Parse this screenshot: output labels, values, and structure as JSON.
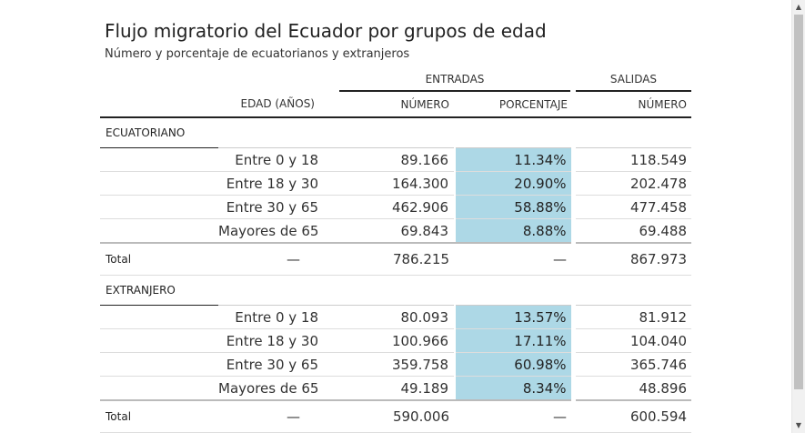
{
  "title": "Flujo migratorio del Ecuador por grupos de edad",
  "subtitle": "Número y porcentaje de ecuatorianos y extranjeros",
  "group_headers": {
    "entradas": "ENTRADAS",
    "salidas": "SALIDAS"
  },
  "columns": {
    "edad": "EDAD (AÑOS)",
    "numero": "NÚMERO",
    "porcentaje": "PORCENTAJE",
    "salidas_numero": "NÚMERO"
  },
  "accent_color": "#add8e6",
  "sections": [
    {
      "label": "ECUATORIANO",
      "rows": [
        {
          "age": "Entre 0 y 18",
          "entradas": "89.166",
          "porcentaje": "11.34%",
          "salidas": "118.549"
        },
        {
          "age": "Entre 18 y 30",
          "entradas": "164.300",
          "porcentaje": "20.90%",
          "salidas": "202.478"
        },
        {
          "age": "Entre 30 y 65",
          "entradas": "462.906",
          "porcentaje": "58.88%",
          "salidas": "477.458"
        },
        {
          "age": "Mayores de 65",
          "entradas": "69.843",
          "porcentaje": "8.88%",
          "salidas": "69.488"
        }
      ],
      "total": {
        "label": "Total",
        "age": "—",
        "entradas": "786.215",
        "porcentaje": "—",
        "salidas": "867.973"
      }
    },
    {
      "label": "EXTRANJERO",
      "rows": [
        {
          "age": "Entre 0 y 18",
          "entradas": "80.093",
          "porcentaje": "13.57%",
          "salidas": "81.912"
        },
        {
          "age": "Entre 18 y 30",
          "entradas": "100.966",
          "porcentaje": "17.11%",
          "salidas": "104.040"
        },
        {
          "age": "Entre 30 y 65",
          "entradas": "359.758",
          "porcentaje": "60.98%",
          "salidas": "365.746"
        },
        {
          "age": "Mayores de 65",
          "entradas": "49.189",
          "porcentaje": "8.34%",
          "salidas": "48.896"
        }
      ],
      "total": {
        "label": "Total",
        "age": "—",
        "entradas": "590.006",
        "porcentaje": "—",
        "salidas": "600.594"
      }
    }
  ],
  "scrollbar": {
    "up_icon": "▲",
    "down_icon": "▼"
  }
}
